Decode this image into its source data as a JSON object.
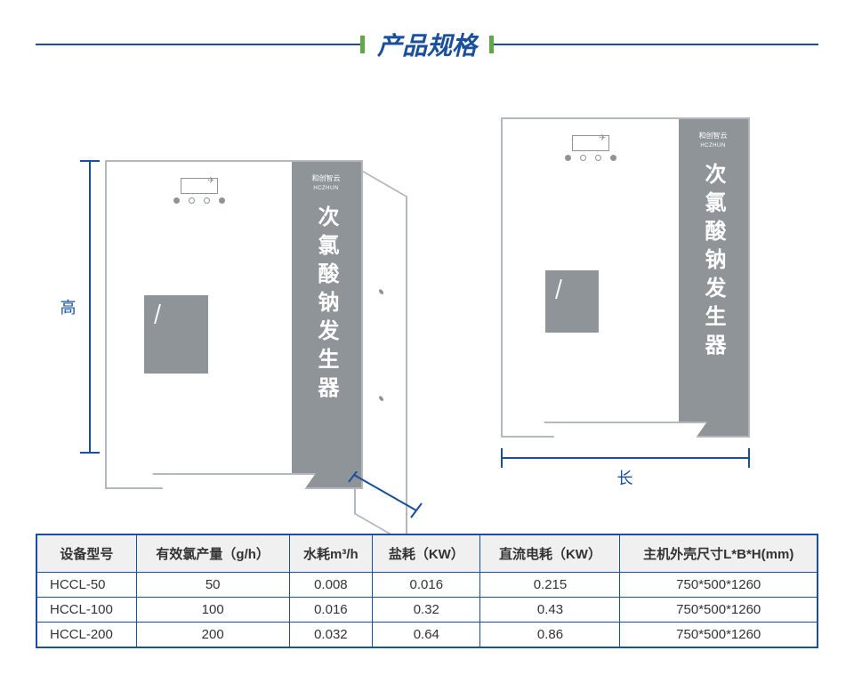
{
  "title": "产品规格",
  "labels": {
    "height": "高",
    "length": "长",
    "side_text": "次氯酸钠发生器",
    "brand": "和创智云",
    "brand_sub": "HCZHUN"
  },
  "table": {
    "columns": [
      "设备型号",
      "有效氯产量（g/h）",
      "水耗m³/h",
      "盐耗（KW）",
      "直流电耗（KW）",
      "主机外壳尺寸L*B*H(mm)"
    ],
    "rows": [
      [
        "HCCL-50",
        "50",
        "0.008",
        "0.016",
        "0.215",
        "750*500*1260"
      ],
      [
        "HCCL-100",
        "100",
        "0.016",
        "0.32",
        "0.43",
        "750*500*1260"
      ],
      [
        "HCCL-200",
        "200",
        "0.032",
        "0.64",
        "0.86",
        "750*500*1260"
      ]
    ]
  },
  "colors": {
    "primary": "#1a4f9c",
    "accent": "#5fa845",
    "machine_gray": "#8f9499",
    "machine_border": "#b4b8bc",
    "header_bg": "#f0f0f0"
  }
}
